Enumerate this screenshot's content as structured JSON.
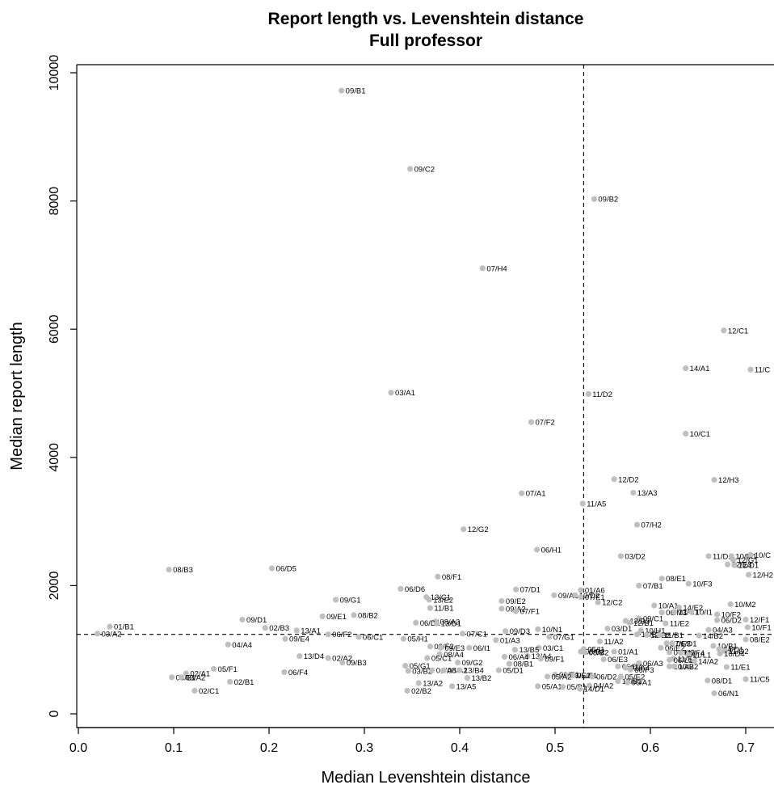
{
  "chart_data": {
    "type": "scatter",
    "title": "Report length vs. Levenshtein distance",
    "subtitle": "Full professor",
    "xlabel": "Median Levenshtein distance",
    "ylabel": "Median report length",
    "xlim": [
      0.0,
      0.73
    ],
    "ylim": [
      0,
      10000
    ],
    "x_ticks": [
      "0.0",
      "0.1",
      "0.2",
      "0.3",
      "0.4",
      "0.5",
      "0.6",
      "0.7"
    ],
    "y_ticks": [
      "0",
      "2000",
      "4000",
      "6000",
      "8000",
      "10000"
    ],
    "grid": false,
    "reference_lines": {
      "x": 0.53,
      "y": 1240
    },
    "point_color": "#bfbfbf",
    "points": [
      {
        "label": "09/B1",
        "x": 0.276,
        "y": 9720
      },
      {
        "label": "09/C2",
        "x": 0.348,
        "y": 8500
      },
      {
        "label": "09/B2",
        "x": 0.541,
        "y": 8030
      },
      {
        "label": "07/H4",
        "x": 0.424,
        "y": 6950
      },
      {
        "label": "12/C1",
        "x": 0.677,
        "y": 5980
      },
      {
        "label": "14/A1",
        "x": 0.637,
        "y": 5390
      },
      {
        "label": "11/C",
        "x": 0.705,
        "y": 5370
      },
      {
        "label": "03/A1",
        "x": 0.328,
        "y": 5010
      },
      {
        "label": "11/D2",
        "x": 0.535,
        "y": 4990
      },
      {
        "label": "07/F2",
        "x": 0.475,
        "y": 4550
      },
      {
        "label": "10/C1",
        "x": 0.637,
        "y": 4370
      },
      {
        "label": "12/D2",
        "x": 0.562,
        "y": 3660
      },
      {
        "label": "12/H3",
        "x": 0.667,
        "y": 3650
      },
      {
        "label": "07/A1",
        "x": 0.465,
        "y": 3440
      },
      {
        "label": "13/A3",
        "x": 0.582,
        "y": 3450
      },
      {
        "label": "11/A5",
        "x": 0.529,
        "y": 3280
      },
      {
        "label": "07/H2",
        "x": 0.586,
        "y": 2950
      },
      {
        "label": "12/G2",
        "x": 0.404,
        "y": 2880
      },
      {
        "label": "06/H1",
        "x": 0.481,
        "y": 2560
      },
      {
        "label": "03/D2",
        "x": 0.569,
        "y": 2460
      },
      {
        "label": "11/D1",
        "x": 0.661,
        "y": 2460
      },
      {
        "label": "10/M1",
        "x": 0.685,
        "y": 2460
      },
      {
        "label": "10/C",
        "x": 0.705,
        "y": 2480
      },
      {
        "label": "12/G1",
        "x": 0.687,
        "y": 2400
      },
      {
        "label": "12/E3",
        "x": 0.681,
        "y": 2330
      },
      {
        "label": "12/D1",
        "x": 0.688,
        "y": 2320
      },
      {
        "label": "08/B3",
        "x": 0.095,
        "y": 2250
      },
      {
        "label": "06/D5",
        "x": 0.203,
        "y": 2270
      },
      {
        "label": "08/F1",
        "x": 0.377,
        "y": 2140
      },
      {
        "label": "12/H2",
        "x": 0.703,
        "y": 2170
      },
      {
        "label": "08/E1",
        "x": 0.612,
        "y": 2110
      },
      {
        "label": "10/F3",
        "x": 0.64,
        "y": 2030
      },
      {
        "label": "07/B1",
        "x": 0.588,
        "y": 2000
      },
      {
        "label": "06/D6",
        "x": 0.338,
        "y": 1950
      },
      {
        "label": "07/D1",
        "x": 0.459,
        "y": 1940
      },
      {
        "label": "01/A6",
        "x": 0.527,
        "y": 1930
      },
      {
        "label": "09/A1",
        "x": 0.499,
        "y": 1850
      },
      {
        "label": "10/D2",
        "x": 0.521,
        "y": 1850
      },
      {
        "label": "07/E1",
        "x": 0.527,
        "y": 1820
      },
      {
        "label": "13/C1",
        "x": 0.365,
        "y": 1820
      },
      {
        "label": "13/E2",
        "x": 0.368,
        "y": 1780
      },
      {
        "label": "09/G1",
        "x": 0.27,
        "y": 1780
      },
      {
        "label": "09/E2",
        "x": 0.444,
        "y": 1760
      },
      {
        "label": "12/C2",
        "x": 0.545,
        "y": 1740
      },
      {
        "label": "10/M2",
        "x": 0.684,
        "y": 1710
      },
      {
        "label": "10/A1",
        "x": 0.604,
        "y": 1690
      },
      {
        "label": "14/E2",
        "x": 0.63,
        "y": 1660
      },
      {
        "label": "11/B1",
        "x": 0.369,
        "y": 1650
      },
      {
        "label": "09/A2",
        "x": 0.444,
        "y": 1640
      },
      {
        "label": "07/F1",
        "x": 0.459,
        "y": 1600
      },
      {
        "label": "06/M1",
        "x": 0.612,
        "y": 1580
      },
      {
        "label": "13/C1",
        "x": 0.625,
        "y": 1590
      },
      {
        "label": "10/I1",
        "x": 0.643,
        "y": 1590
      },
      {
        "label": "10/F2",
        "x": 0.67,
        "y": 1550
      },
      {
        "label": "08/B2",
        "x": 0.289,
        "y": 1540
      },
      {
        "label": "09/E1",
        "x": 0.256,
        "y": 1520
      },
      {
        "label": "09/D1",
        "x": 0.172,
        "y": 1470
      },
      {
        "label": "12/F1",
        "x": 0.7,
        "y": 1470
      },
      {
        "label": "06/D2",
        "x": 0.67,
        "y": 1460
      },
      {
        "label": "09/C1",
        "x": 0.588,
        "y": 1490
      },
      {
        "label": "13/B3",
        "x": 0.574,
        "y": 1450
      },
      {
        "label": "08/A3",
        "x": 0.375,
        "y": 1440
      },
      {
        "label": "06/D1",
        "x": 0.354,
        "y": 1420
      },
      {
        "label": "13/D1",
        "x": 0.376,
        "y": 1410
      },
      {
        "label": "12/B1",
        "x": 0.578,
        "y": 1420
      },
      {
        "label": "11/E2",
        "x": 0.616,
        "y": 1410
      },
      {
        "label": "01/B1",
        "x": 0.033,
        "y": 1360
      },
      {
        "label": "02/B3",
        "x": 0.196,
        "y": 1340
      },
      {
        "label": "03/D1",
        "x": 0.555,
        "y": 1330
      },
      {
        "label": "10/N1",
        "x": 0.482,
        "y": 1320
      },
      {
        "label": "10/F1",
        "x": 0.702,
        "y": 1350
      },
      {
        "label": "13/A1",
        "x": 0.229,
        "y": 1300
      },
      {
        "label": "04/A3",
        "x": 0.661,
        "y": 1310
      },
      {
        "label": "09/D3",
        "x": 0.448,
        "y": 1290
      },
      {
        "label": "10/H1",
        "x": 0.59,
        "y": 1300
      },
      {
        "label": "03/A2",
        "x": 0.02,
        "y": 1250
      },
      {
        "label": "06/F2",
        "x": 0.262,
        "y": 1240
      },
      {
        "label": "07/C1",
        "x": 0.403,
        "y": 1250
      },
      {
        "label": "13/B2",
        "x": 0.586,
        "y": 1240
      },
      {
        "label": "12/B2",
        "x": 0.596,
        "y": 1230
      },
      {
        "label": "11/B1",
        "x": 0.61,
        "y": 1230
      },
      {
        "label": "14/B2",
        "x": 0.651,
        "y": 1220
      },
      {
        "label": "06/C1",
        "x": 0.294,
        "y": 1200
      },
      {
        "label": "07/G1",
        "x": 0.494,
        "y": 1200
      },
      {
        "label": "09/E4",
        "x": 0.217,
        "y": 1170
      },
      {
        "label": "05/H1",
        "x": 0.341,
        "y": 1170
      },
      {
        "label": "01/A3",
        "x": 0.438,
        "y": 1150
      },
      {
        "label": "11/A2",
        "x": 0.547,
        "y": 1130
      },
      {
        "label": "08/E2",
        "x": 0.7,
        "y": 1160
      },
      {
        "label": "07/E3",
        "x": 0.617,
        "y": 1100
      },
      {
        "label": "06/D1",
        "x": 0.623,
        "y": 1100
      },
      {
        "label": "10/B1",
        "x": 0.666,
        "y": 1060
      },
      {
        "label": "04/A4",
        "x": 0.157,
        "y": 1080
      },
      {
        "label": "09/F2",
        "x": 0.369,
        "y": 1050
      },
      {
        "label": "09/E3",
        "x": 0.38,
        "y": 1030
      },
      {
        "label": "06/I1",
        "x": 0.41,
        "y": 1030
      },
      {
        "label": "03/C1",
        "x": 0.483,
        "y": 1030
      },
      {
        "label": "13/B5",
        "x": 0.458,
        "y": 1000
      },
      {
        "label": "05/I1",
        "x": 0.53,
        "y": 1010
      },
      {
        "label": "06/E2",
        "x": 0.611,
        "y": 1030
      },
      {
        "label": "14/D1",
        "x": 0.672,
        "y": 1010
      },
      {
        "label": "11/D2",
        "x": 0.678,
        "y": 980
      },
      {
        "label": "08/B2",
        "x": 0.527,
        "y": 970
      },
      {
        "label": "08/B2",
        "x": 0.531,
        "y": 960
      },
      {
        "label": "01/A1",
        "x": 0.562,
        "y": 970
      },
      {
        "label": "06/M2",
        "x": 0.62,
        "y": 960
      },
      {
        "label": "06/F4",
        "x": 0.632,
        "y": 950
      },
      {
        "label": "10/D4",
        "x": 0.673,
        "y": 940
      },
      {
        "label": "08/A4",
        "x": 0.379,
        "y": 930
      },
      {
        "label": "13/D4",
        "x": 0.232,
        "y": 900
      },
      {
        "label": "13/A4",
        "x": 0.471,
        "y": 900
      },
      {
        "label": "06/A4",
        "x": 0.447,
        "y": 890
      },
      {
        "label": "11/L1",
        "x": 0.64,
        "y": 920
      },
      {
        "label": "02/A2",
        "x": 0.262,
        "y": 870
      },
      {
        "label": "05/C1",
        "x": 0.366,
        "y": 870
      },
      {
        "label": "09/F1",
        "x": 0.485,
        "y": 860
      },
      {
        "label": "06/E3",
        "x": 0.551,
        "y": 850
      },
      {
        "label": "11/E2",
        "x": 0.624,
        "y": 860
      },
      {
        "label": "14/A2",
        "x": 0.646,
        "y": 820
      },
      {
        "label": "06/L1",
        "x": 0.62,
        "y": 840
      },
      {
        "label": "09/B3",
        "x": 0.277,
        "y": 800
      },
      {
        "label": "09/G2",
        "x": 0.398,
        "y": 800
      },
      {
        "label": "06/A3",
        "x": 0.588,
        "y": 790
      },
      {
        "label": "08/B1",
        "x": 0.452,
        "y": 780
      },
      {
        "label": "05/G1",
        "x": 0.343,
        "y": 750
      },
      {
        "label": "10/A2",
        "x": 0.62,
        "y": 740
      },
      {
        "label": "10/B2",
        "x": 0.625,
        "y": 740
      },
      {
        "label": "11/E1",
        "x": 0.68,
        "y": 730
      },
      {
        "label": "06/D4",
        "x": 0.566,
        "y": 740
      },
      {
        "label": "01/A4",
        "x": 0.574,
        "y": 720
      },
      {
        "label": "05/F1",
        "x": 0.142,
        "y": 700
      },
      {
        "label": "03/B2",
        "x": 0.346,
        "y": 670
      },
      {
        "label": "01/A8",
        "x": 0.371,
        "y": 680
      },
      {
        "label": "08/A2",
        "x": 0.383,
        "y": 680
      },
      {
        "label": "13/B4",
        "x": 0.4,
        "y": 680
      },
      {
        "label": "05/D1",
        "x": 0.441,
        "y": 680
      },
      {
        "label": "06/F4",
        "x": 0.216,
        "y": 650
      },
      {
        "label": "06/F3",
        "x": 0.579,
        "y": 690
      },
      {
        "label": "02/A1",
        "x": 0.113,
        "y": 630
      },
      {
        "label": "06/E1",
        "x": 0.5,
        "y": 610
      },
      {
        "label": "06/E2",
        "x": 0.512,
        "y": 600
      },
      {
        "label": "05/E1",
        "x": 0.519,
        "y": 600
      },
      {
        "label": "05/A2",
        "x": 0.492,
        "y": 580
      },
      {
        "label": "06/D2",
        "x": 0.539,
        "y": 580
      },
      {
        "label": "05/E2",
        "x": 0.569,
        "y": 580
      },
      {
        "label": "03/B1",
        "x": 0.098,
        "y": 570
      },
      {
        "label": "03/A2",
        "x": 0.108,
        "y": 570
      },
      {
        "label": "13/B2",
        "x": 0.408,
        "y": 560
      },
      {
        "label": "11/C5",
        "x": 0.7,
        "y": 540
      },
      {
        "label": "08/D1",
        "x": 0.66,
        "y": 520
      },
      {
        "label": "02/B1",
        "x": 0.159,
        "y": 500
      },
      {
        "label": "13/A2",
        "x": 0.357,
        "y": 480
      },
      {
        "label": "13/B1",
        "x": 0.566,
        "y": 510
      },
      {
        "label": "06/A1",
        "x": 0.576,
        "y": 490
      },
      {
        "label": "05/A1",
        "x": 0.482,
        "y": 430
      },
      {
        "label": "04/A2",
        "x": 0.536,
        "y": 440
      },
      {
        "label": "13/A5",
        "x": 0.392,
        "y": 430
      },
      {
        "label": "05/B1",
        "x": 0.508,
        "y": 420
      },
      {
        "label": "14/D1",
        "x": 0.526,
        "y": 390
      },
      {
        "label": "02/C1",
        "x": 0.122,
        "y": 360
      },
      {
        "label": "02/B2",
        "x": 0.345,
        "y": 360
      },
      {
        "label": "06/N1",
        "x": 0.667,
        "y": 320
      }
    ]
  }
}
